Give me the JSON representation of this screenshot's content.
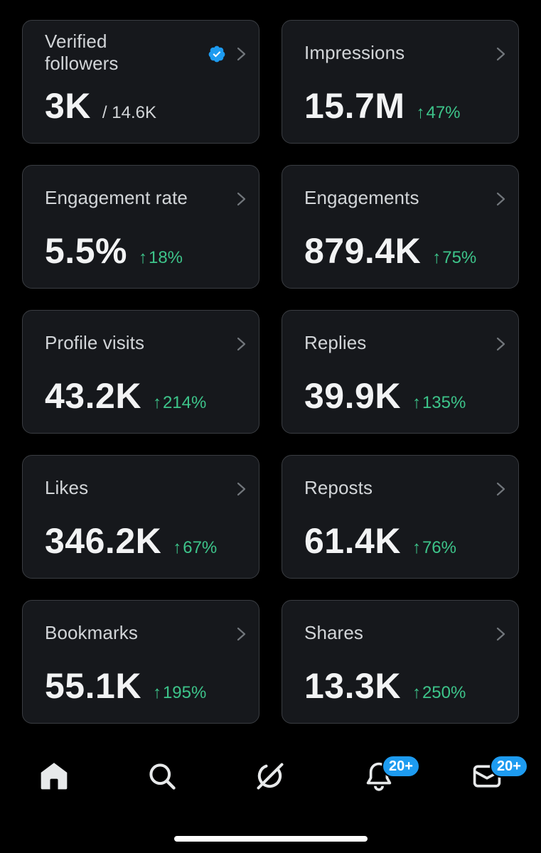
{
  "stats": [
    {
      "id": "verified-followers",
      "title": "Verified followers",
      "value": "3K",
      "total": "/ 14.6K",
      "verified": true
    },
    {
      "id": "impressions",
      "title": "Impressions",
      "value": "15.7M",
      "change": "47%"
    },
    {
      "id": "engagement-rate",
      "title": "Engagement rate",
      "value": "5.5%",
      "change": "18%"
    },
    {
      "id": "engagements",
      "title": "Engagements",
      "value": "879.4K",
      "change": "75%"
    },
    {
      "id": "profile-visits",
      "title": "Profile visits",
      "value": "43.2K",
      "change": "214%"
    },
    {
      "id": "replies",
      "title": "Replies",
      "value": "39.9K",
      "change": "135%"
    },
    {
      "id": "likes",
      "title": "Likes",
      "value": "346.2K",
      "change": "67%"
    },
    {
      "id": "reposts",
      "title": "Reposts",
      "value": "61.4K",
      "change": "76%"
    },
    {
      "id": "bookmarks",
      "title": "Bookmarks",
      "value": "55.1K",
      "change": "195%"
    },
    {
      "id": "shares",
      "title": "Shares",
      "value": "13.3K",
      "change": "250%"
    }
  ],
  "change_arrow": "↑",
  "nav": {
    "notifications_badge": "20+",
    "messages_badge": "20+"
  },
  "colors": {
    "background": "#000000",
    "card": "#16181c",
    "card_border": "#3a3d42",
    "positive": "#3dc48a",
    "accent": "#1d9bf0"
  },
  "icons": {
    "home": "home-icon",
    "search": "search-icon",
    "grok": "grok-icon",
    "notifications": "bell-icon",
    "messages": "mail-icon",
    "verified": "verified-badge-icon",
    "chevron": "chevron-right-icon"
  }
}
